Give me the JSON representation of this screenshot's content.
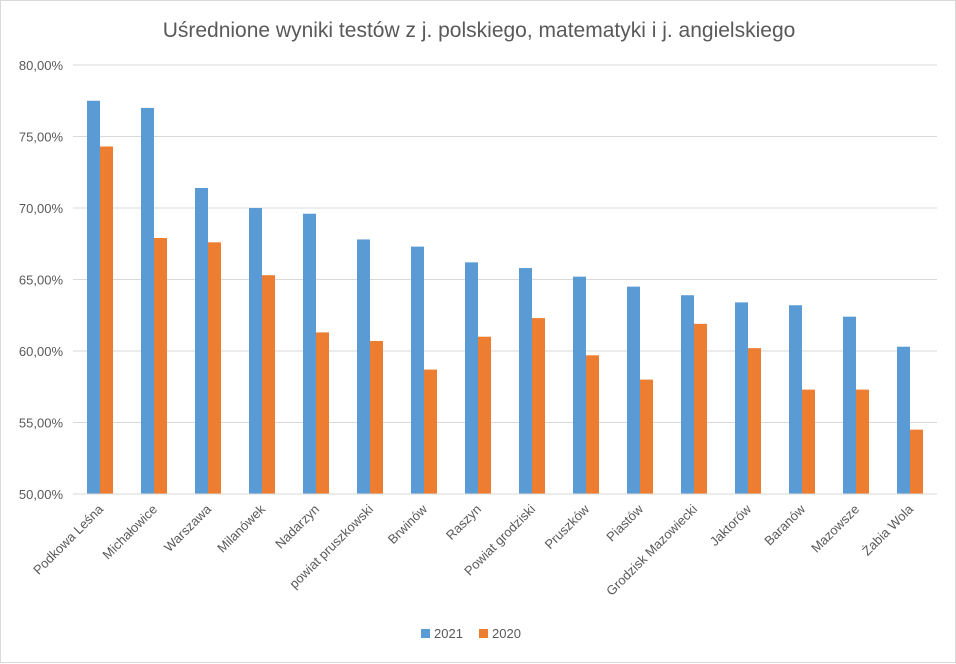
{
  "chart_data": {
    "type": "bar",
    "title": "Uśrednione wyniki testów z j. polskiego, matematyki i j. angielskiego",
    "xlabel": "",
    "ylabel": "",
    "ylim": [
      50,
      80
    ],
    "y_ticks": [
      "50,00%",
      "55,00%",
      "60,00%",
      "65,00%",
      "70,00%",
      "75,00%",
      "80,00%"
    ],
    "grid": true,
    "legend_position": "bottom",
    "categories": [
      "Podkowa Leśna",
      "Michałowice",
      "Warszawa",
      "Milanówek",
      "Nadarzyn",
      "powiat pruszkowski",
      "Brwinów",
      "Raszyn",
      "Powiat grodziski",
      "Pruszków",
      "Piastów",
      "Grodzisk Mazowiecki",
      "Jaktorów",
      "Baranów",
      "Mazowsze",
      "Żabia Wola"
    ],
    "series": [
      {
        "name": "2021",
        "color": "#5b9bd5",
        "values": [
          77.5,
          77.0,
          71.4,
          70.0,
          69.6,
          67.8,
          67.3,
          66.2,
          65.8,
          65.2,
          64.5,
          63.9,
          63.4,
          63.2,
          62.4,
          60.3
        ]
      },
      {
        "name": "2020",
        "color": "#ed7d31",
        "values": [
          74.3,
          67.9,
          67.6,
          65.3,
          61.3,
          60.7,
          58.7,
          61.0,
          62.3,
          59.7,
          58.0,
          61.9,
          60.2,
          57.3,
          57.3,
          54.5
        ]
      }
    ]
  }
}
